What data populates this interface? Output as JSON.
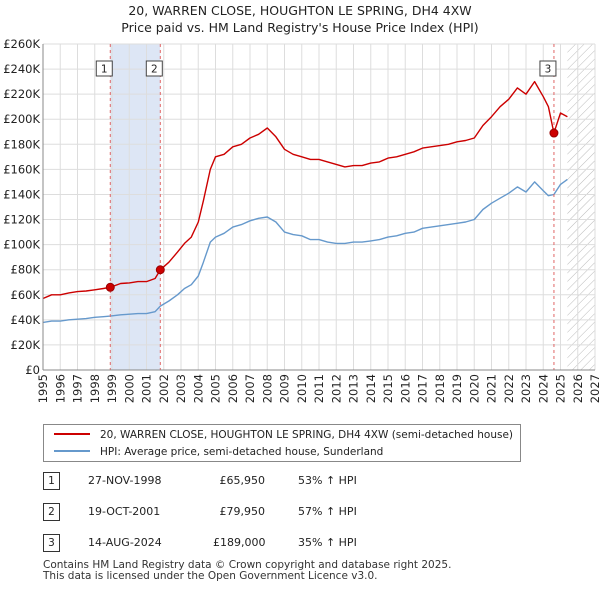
{
  "title_line1": "20, WARREN CLOSE, HOUGHTON LE SPRING, DH4 4XW",
  "title_line2": "Price paid vs. HM Land Registry's House Price Index (HPI)",
  "colors": {
    "property_line": "#cc0000",
    "hpi_line": "#6699cc",
    "ownership_shade": "#dde6f5",
    "marker_vline": "#e06666",
    "grid": "#dddddd",
    "hatch": "#bbbbbb"
  },
  "chart_data": {
    "type": "line",
    "title": "Price paid vs. HM Land Registry's House Price Index (HPI)",
    "xlim": [
      1995,
      2027
    ],
    "ylim": [
      0,
      260000
    ],
    "x_ticks": [
      1995,
      1996,
      1997,
      1998,
      1999,
      2000,
      2001,
      2002,
      2003,
      2004,
      2005,
      2006,
      2007,
      2008,
      2009,
      2010,
      2011,
      2012,
      2013,
      2014,
      2015,
      2016,
      2017,
      2018,
      2019,
      2020,
      2021,
      2022,
      2023,
      2024,
      2025,
      2026,
      2027
    ],
    "y_ticks": [
      0,
      20000,
      40000,
      60000,
      80000,
      100000,
      120000,
      140000,
      160000,
      180000,
      200000,
      220000,
      240000,
      260000
    ],
    "y_tick_labels": [
      "£0",
      "£20K",
      "£40K",
      "£60K",
      "£80K",
      "£100K",
      "£120K",
      "£140K",
      "£160K",
      "£180K",
      "£200K",
      "£220K",
      "£240K",
      "£260K"
    ],
    "grid": true,
    "legend_position": "below",
    "shaded_period": [
      1998.9,
      2001.8
    ],
    "hatched_after": 2025.4,
    "series": [
      {
        "name": "20, WARREN CLOSE, HOUGHTON LE SPRING, DH4 4XW (semi-detached house)",
        "x": [
          1995.0,
          1995.5,
          1996.0,
          1996.5,
          1997.0,
          1997.5,
          1998.0,
          1998.5,
          1998.9,
          1999.5,
          2000.0,
          2000.5,
          2001.0,
          2001.5,
          2001.8,
          2002.3,
          2002.8,
          2003.2,
          2003.6,
          2004.0,
          2004.3,
          2004.7,
          2005.0,
          2005.5,
          2006.0,
          2006.5,
          2007.0,
          2007.5,
          2008.0,
          2008.5,
          2009.0,
          2009.5,
          2010.0,
          2010.5,
          2011.0,
          2011.5,
          2012.0,
          2012.5,
          2013.0,
          2013.5,
          2014.0,
          2014.5,
          2015.0,
          2015.5,
          2016.0,
          2016.5,
          2017.0,
          2017.5,
          2018.0,
          2018.5,
          2019.0,
          2019.5,
          2020.0,
          2020.5,
          2021.0,
          2021.5,
          2022.0,
          2022.5,
          2023.0,
          2023.5,
          2024.0,
          2024.3,
          2024.62,
          2025.0,
          2025.4
        ],
        "values": [
          57000,
          60000,
          60000,
          61500,
          62500,
          63000,
          64000,
          65000,
          65950,
          69000,
          69500,
          70500,
          70500,
          73000,
          79950,
          86000,
          94000,
          101000,
          106000,
          118000,
          135000,
          160000,
          170000,
          172000,
          178000,
          180000,
          185000,
          188000,
          193000,
          186000,
          176000,
          172000,
          170000,
          168000,
          168000,
          166000,
          164000,
          162000,
          163000,
          163000,
          165000,
          166000,
          169000,
          170000,
          172000,
          174000,
          177000,
          178000,
          179000,
          180000,
          182000,
          183000,
          185000,
          195000,
          202000,
          210000,
          216000,
          225000,
          220000,
          230000,
          218000,
          210000,
          189000,
          205000,
          202000
        ]
      },
      {
        "name": "HPI: Average price, semi-detached house, Sunderland",
        "x": [
          1995.0,
          1995.5,
          1996.0,
          1996.5,
          1997.0,
          1997.5,
          1998.0,
          1998.5,
          1998.9,
          1999.5,
          2000.0,
          2000.5,
          2001.0,
          2001.5,
          2001.8,
          2002.3,
          2002.8,
          2003.2,
          2003.6,
          2004.0,
          2004.3,
          2004.7,
          2005.0,
          2005.5,
          2006.0,
          2006.5,
          2007.0,
          2007.5,
          2008.0,
          2008.5,
          2009.0,
          2009.5,
          2010.0,
          2010.5,
          2011.0,
          2011.5,
          2012.0,
          2012.5,
          2013.0,
          2013.5,
          2014.0,
          2014.5,
          2015.0,
          2015.5,
          2016.0,
          2016.5,
          2017.0,
          2017.5,
          2018.0,
          2018.5,
          2019.0,
          2019.5,
          2020.0,
          2020.5,
          2021.0,
          2021.5,
          2022.0,
          2022.5,
          2023.0,
          2023.5,
          2024.0,
          2024.3,
          2024.62,
          2025.0,
          2025.4
        ],
        "values": [
          38000,
          39000,
          39000,
          40000,
          40500,
          41000,
          42000,
          42500,
          43000,
          44000,
          44500,
          45000,
          45000,
          46500,
          51000,
          55000,
          60000,
          65000,
          68000,
          75000,
          86000,
          102000,
          106000,
          109000,
          114000,
          116000,
          119000,
          121000,
          122000,
          118000,
          110000,
          108000,
          107000,
          104000,
          104000,
          102000,
          101000,
          101000,
          102000,
          102000,
          103000,
          104000,
          106000,
          107000,
          109000,
          110000,
          113000,
          114000,
          115000,
          116000,
          117000,
          118000,
          120000,
          128000,
          133000,
          137000,
          141000,
          146000,
          142000,
          150000,
          143000,
          139000,
          140000,
          148000,
          152000
        ]
      }
    ],
    "sales": [
      {
        "id": "1",
        "x": 1998.9,
        "value": 65950
      },
      {
        "id": "2",
        "x": 2001.8,
        "value": 79950
      },
      {
        "id": "3",
        "x": 2024.62,
        "value": 189000
      }
    ]
  },
  "sales_table": [
    {
      "num": "1",
      "date": "27-NOV-1998",
      "price": "£65,950",
      "hpi": "53% ↑ HPI"
    },
    {
      "num": "2",
      "date": "19-OCT-2001",
      "price": "£79,950",
      "hpi": "57% ↑ HPI"
    },
    {
      "num": "3",
      "date": "14-AUG-2024",
      "price": "£189,000",
      "hpi": "35% ↑ HPI"
    }
  ],
  "legend": {
    "property_label": "20, WARREN CLOSE, HOUGHTON LE SPRING, DH4 4XW (semi-detached house)",
    "hpi_label": "HPI: Average price, semi-detached house, Sunderland"
  },
  "footer": {
    "line1": "Contains HM Land Registry data © Crown copyright and database right 2025.",
    "line2": "This data is licensed under the Open Government Licence v3.0."
  }
}
